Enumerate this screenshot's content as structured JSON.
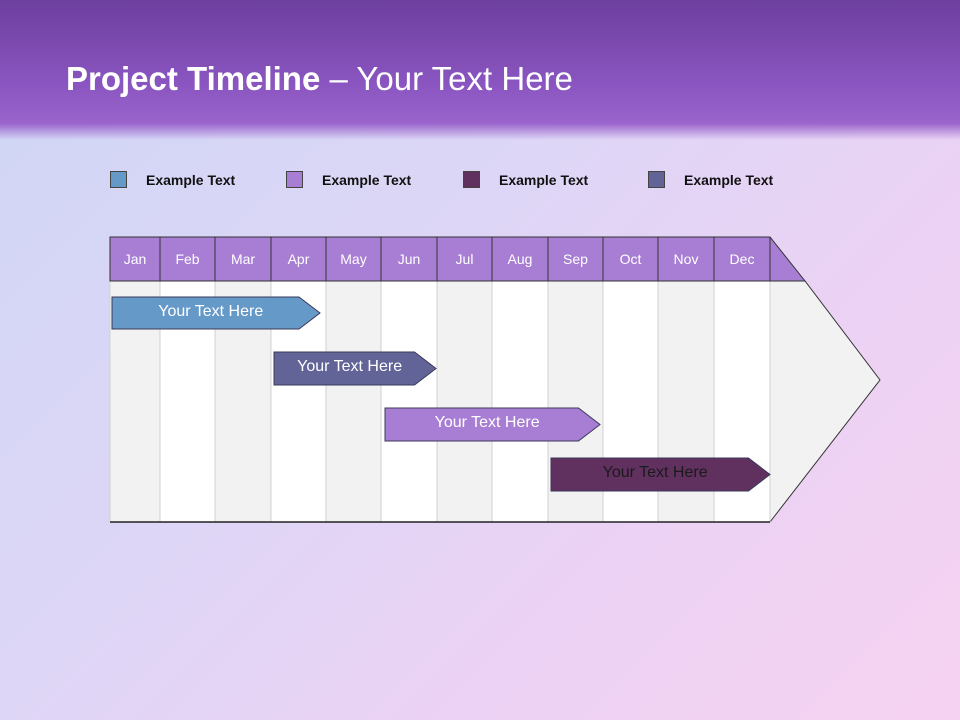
{
  "title": {
    "bold": "Project Timeline",
    "rest": " – Your Text Here"
  },
  "legend": [
    {
      "label": "Example Text",
      "color": "#6499c8"
    },
    {
      "label": "Example Text",
      "color": "#a87dd4"
    },
    {
      "label": "Example Text",
      "color": "#60305f"
    },
    {
      "label": "Example Text",
      "color": "#626498"
    }
  ],
  "months": [
    "Jan",
    "Feb",
    "Mar",
    "Apr",
    "May",
    "Jun",
    "Jul",
    "Aug",
    "Sep",
    "Oct",
    "Nov",
    "Dec"
  ],
  "header_color": "#a87dd4",
  "bars": [
    {
      "label": "Your  Text Here",
      "color": "#6499c8",
      "text_color": "#ffffff"
    },
    {
      "label": "Your  Text Here",
      "color": "#626498",
      "text_color": "#ffffff"
    },
    {
      "label": "Your  Text Here",
      "color": "#a87dd4",
      "text_color": "#ffffff"
    },
    {
      "label": "Your  Text Here",
      "color": "#60305f",
      "text_color": "#1a1a1a"
    }
  ]
}
